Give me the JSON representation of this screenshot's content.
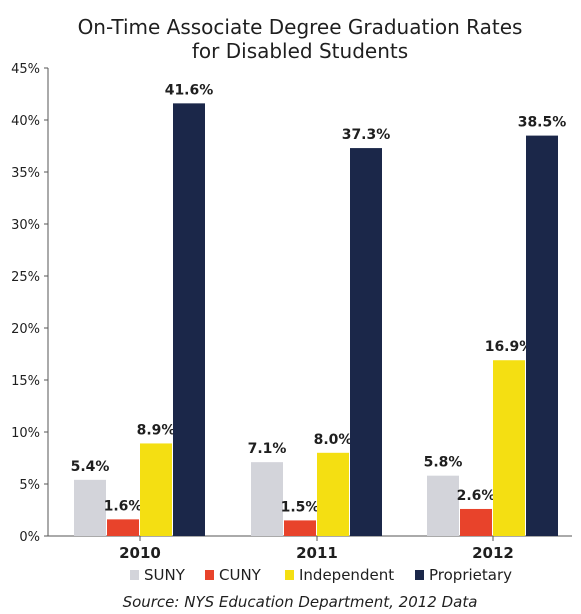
{
  "chart_data": {
    "type": "bar",
    "title_lines": [
      "On-Time Associate Degree Graduation Rates",
      "for Disabled Students"
    ],
    "categories": [
      "2010",
      "2011",
      "2012"
    ],
    "series": [
      {
        "name": "SUNY",
        "color": "#d3d4da",
        "values": [
          5.4,
          7.1,
          5.8
        ],
        "labels": [
          "5.4%",
          "7.1%",
          "5.8%"
        ]
      },
      {
        "name": "CUNY",
        "color": "#e8432b",
        "values": [
          1.6,
          1.5,
          2.6
        ],
        "labels": [
          "1.6%",
          "1.5%",
          "2.6%"
        ]
      },
      {
        "name": "Independent",
        "color": "#f4df12",
        "values": [
          8.9,
          8.0,
          16.9
        ],
        "labels": [
          "8.9%",
          "8.0%",
          "16.9%"
        ]
      },
      {
        "name": "Proprietary",
        "color": "#1b2749",
        "values": [
          41.6,
          37.3,
          38.5
        ],
        "labels": [
          "41.6%",
          "37.3%",
          "38.5%"
        ]
      }
    ],
    "ylim": [
      0,
      45
    ],
    "yticks": [
      0,
      5,
      10,
      15,
      20,
      25,
      30,
      35,
      40,
      45
    ],
    "ytick_labels": [
      "0%",
      "5%",
      "10%",
      "15%",
      "20%",
      "25%",
      "30%",
      "35%",
      "40%",
      "45%"
    ],
    "legend_position": "bottom",
    "grid": false,
    "source": "Source: NYS Education Department, 2012 Data"
  }
}
